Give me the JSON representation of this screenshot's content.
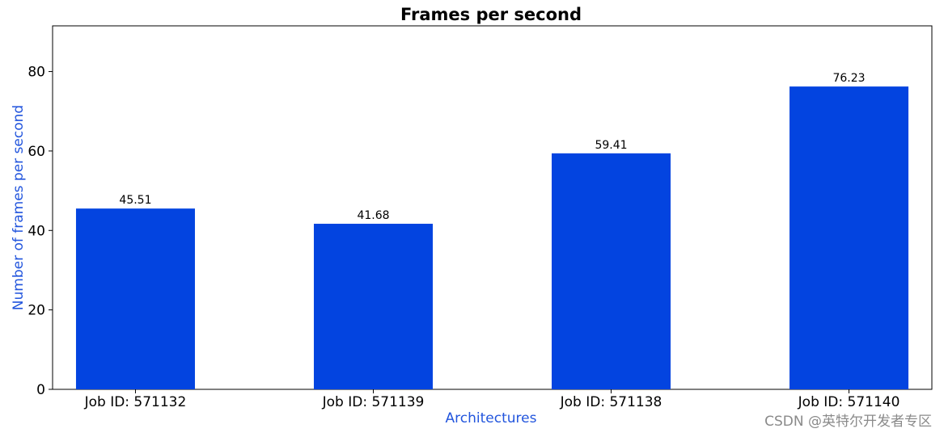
{
  "chart_data": {
    "type": "bar",
    "title": "Frames per second",
    "xlabel": "Architectures",
    "ylabel": "Number of frames per second",
    "categories": [
      "Job ID: 571132",
      "Job ID: 571139",
      "Job ID: 571138",
      "Job ID: 571140"
    ],
    "values": [
      45.51,
      41.68,
      59.41,
      76.23
    ],
    "data_labels": [
      "45.51",
      "41.68",
      "59.41",
      "76.23"
    ],
    "ylim": [
      0,
      91.5
    ],
    "yticks": [
      0,
      20,
      40,
      60,
      80
    ],
    "grid": false,
    "colors": {
      "bar": "#0344e0",
      "axis_label": "#2255dd"
    }
  },
  "watermark": "CSDN @英特尔开发者专区"
}
